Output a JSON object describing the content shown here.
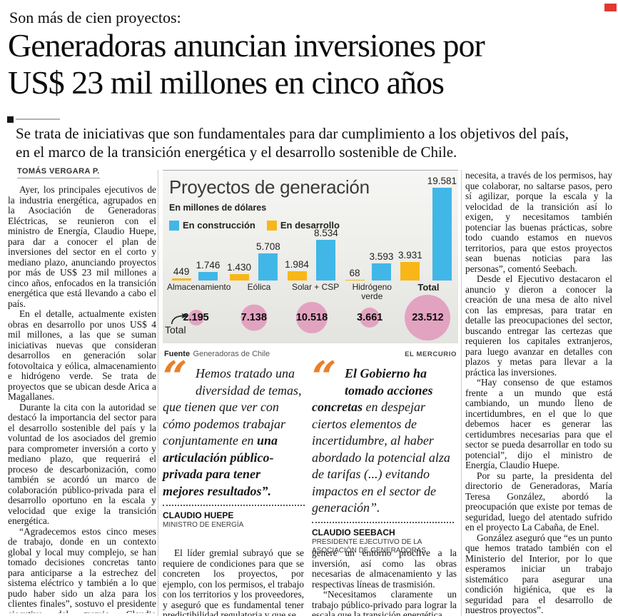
{
  "page": {
    "kicker": "Son más de cien proyectos:",
    "headline": "Generadoras anuncian inversiones por\nUS$ 23 mil millones en cinco años",
    "deck": "Se trata de iniciativas que son fundamentales para dar cumplimiento a los objetivos del país,\nen el marco de la transición energética y el desarrollo sostenible de Chile.",
    "byline": "TOMÁS VERGARA P.",
    "corner_flag_color": "#e0392f"
  },
  "left_column": {
    "paragraphs": [
      "Ayer, los principales ejecutivos de la industria energética, agrupados en la Asociación de Generadoras Eléctricas, se reunieron con el ministro de Energía, Claudio Huepe, para dar a conocer el plan de inversiones del sector en el corto y mediano plazo, anunciando proyectos por más de US$ 23 mil millones a cinco años, enfocados en la transición energética que está llevando a cabo el país.",
      "En el detalle, actualmente existen obras en desarrollo por unos US$ 4 mil millones, a las que se suman iniciativas nuevas que consideran desarrollos en generación solar fotovoltaica y eólica, almacenamiento e hidrógeno verde. Se trata de proyectos que se ubican desde Arica a Magallanes.",
      "Durante la cita con la autoridad se destacó la importancia del sector para el desarrollo sostenible del país y la voluntad de los asociados del gremio para comprometer inversión a corto y mediano plazo, que requerirá el proceso de descarbonización, como también se acordó un marco de colaboración público-privada para el desarrollo oportuno en la escala y velocidad que exige la transición energética.",
      "“Agradecemos estos cinco meses de trabajo, donde en un contexto global y local muy complejo, se han tomado decisiones concretas tanto para anticiparse a la estrechez del sistema eléctrico y también a lo que pudo haber sido un alza para los clientes finales”, sostuvo el presidente ejecutivo del gremio, Claudio Seebach."
    ]
  },
  "mid_left_column": {
    "paragraphs": [
      "El líder gremial subrayó que se requiere de condiciones para que se concreten los proyectos, por ejemplo, con los permisos, el trabajo con los territorios y los proveedores, y aseguró que es fundamental tener predictibilidad regulatoria y que se"
    ]
  },
  "mid_right_column": {
    "paragraphs": [
      "genere un entorno proclive a la inversión, así como las obras necesarias de almacenamiento y las respectivas líneas de trasmisión.",
      "“Necesitamos claramente un trabajo público-privado para lograr la escala que la transición energética"
    ]
  },
  "right_column": {
    "paragraphs": [
      "necesita, a través de los permisos, hay que colaborar, no saltarse pasos, pero sí agilizar, porque la escala y la velocidad de la transición así lo exigen, y necesitamos también potenciar las buenas prácticas, sobre todo cuando estamos en nuevos territorios, para que estos proyectos sean buenas noticias para las personas”, comentó Seebach.",
      "Desde el Ejecutivo destacaron el anuncio y dieron a conocer la creación de una mesa de alto nivel con las empresas, para tratar en detalle las preocupaciones del sector, buscando entregar las certezas que requieren los capitales extranjeros, para luego avanzar en detalles con plazos y metas para llevar a la práctica las inversiones.",
      "“Hay consenso de que estamos frente a un mundo que está cambiando, un mundo lleno de incertidumbres, en el que lo que debemos hacer es generar las certidumbres necesarias para que el sector se pueda desarrollar en todo su potencial”, dijo el ministro de Energía, Claudio Huepe.",
      "Por su parte, la presidenta del directorio de Generadoras, María Teresa González, abordó la preocupación que existe por temas de seguridad, luego del atentado sufrido en el proyecto La Cabaña, de Enel.",
      "González aseguró que “es un punto que hemos tratado también con el Ministerio del Interior, por lo que esperamos iniciar un trabajo sistemático para asegurar una condición higiénica, que es la seguridad para el desarrollo de nuestros proyectos”."
    ]
  },
  "chart_data": {
    "type": "bar",
    "title": "Proyectos de generación",
    "subtitle": "En millones de dólares",
    "categories": [
      "Almacenamiento",
      "Eólica",
      "Solar + CSP",
      "Hidrógeno verde",
      "Total"
    ],
    "series": [
      {
        "name": "En desarrollo",
        "color": "#f8b717",
        "values": [
          449,
          1430,
          1984,
          68,
          3931
        ]
      },
      {
        "name": "En construcción",
        "color": "#41b7e7",
        "values": [
          1746,
          5708,
          8534,
          3593,
          19581
        ]
      }
    ],
    "legend": [
      {
        "label": "En construcción",
        "color": "#41b7e7"
      },
      {
        "label": "En desarrollo",
        "color": "#f8b717"
      }
    ],
    "totals": {
      "label": "Total",
      "color": "#e2a3c0",
      "values": [
        2195,
        7138,
        10518,
        3661,
        23512
      ]
    },
    "ylim": [
      0,
      19581
    ],
    "grid": false,
    "legend_position": "top-left",
    "source_label": "Fuente",
    "source": "Generadoras de Chile",
    "credit": "EL MERCURIO"
  },
  "quotes": [
    {
      "mark": "“",
      "mark_color": "#e8802b",
      "text_regular": "Hemos tratado una diversidad de temas, que tienen que ver con cómo podemos trabajar conjuntamente en ",
      "text_bold": "una articulación público-privada para tener mejores resultados”.",
      "name": "CLAUDIO HUEPE",
      "role": "MINISTRO DE ENERGÍA"
    },
    {
      "mark": "“",
      "mark_color": "#e8802b",
      "text_bold": "El Gobierno ha tomado acciones concretas ",
      "text_regular": "en despejar ciertos elementos de incertidumbre, al haber abordado la potencial alza de tarifas (...) evitando impactos en el sector de generación”.",
      "name": "CLAUDIO SEEBACH",
      "role": "PRESIDENTE EJECUTIVO DE LA ASOCIACIÓN DE GENERADORAS"
    }
  ]
}
